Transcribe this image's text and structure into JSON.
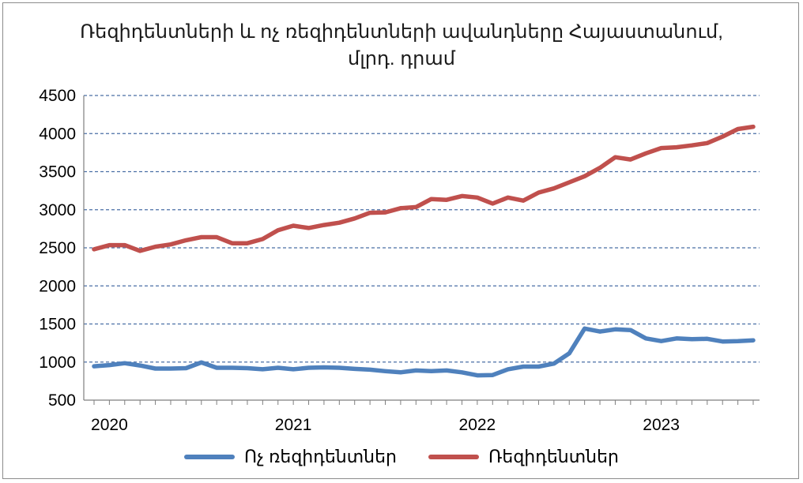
{
  "chart_data": {
    "type": "line",
    "title_line1": "Ռեզիդենտների և ոչ ռեզիդենտների ավանդները Հայաստանում,",
    "title_line2": "մլրդ. դրամ",
    "ylim": [
      500,
      4500
    ],
    "yticks": [
      4500,
      4000,
      3500,
      3000,
      2500,
      2000,
      1500,
      1000,
      500
    ],
    "ytick_labels": [
      "4500",
      "4000",
      "3500",
      "3000",
      "2500",
      "2000",
      "1500",
      "1000",
      "500"
    ],
    "xtick_labels": [
      "2020",
      "2021",
      "2022",
      "2023"
    ],
    "x_start": "2020-01",
    "x_end": "2023-08",
    "grid": "horizontal dashed",
    "legend_position": "bottom",
    "series": [
      {
        "name": "Ոչ ռեզիդենտներ",
        "color": "#4f81bd",
        "values": [
          945,
          960,
          985,
          955,
          915,
          915,
          920,
          995,
          925,
          925,
          920,
          905,
          925,
          905,
          925,
          930,
          925,
          910,
          900,
          880,
          865,
          890,
          880,
          890,
          865,
          825,
          830,
          905,
          940,
          940,
          980,
          1115,
          1440,
          1400,
          1430,
          1420,
          1310,
          1275,
          1310,
          1300,
          1305,
          1270,
          1275,
          1285
        ]
      },
      {
        "name": "Ռեզիդենտներ",
        "color": "#c0504d",
        "values": [
          2480,
          2535,
          2535,
          2460,
          2515,
          2545,
          2600,
          2640,
          2640,
          2560,
          2560,
          2615,
          2730,
          2790,
          2760,
          2800,
          2830,
          2885,
          2960,
          2965,
          3020,
          3035,
          3140,
          3130,
          3180,
          3160,
          3080,
          3160,
          3120,
          3225,
          3280,
          3360,
          3440,
          3550,
          3690,
          3660,
          3740,
          3810,
          3820,
          3845,
          3875,
          3960,
          4060,
          4090
        ]
      }
    ]
  }
}
